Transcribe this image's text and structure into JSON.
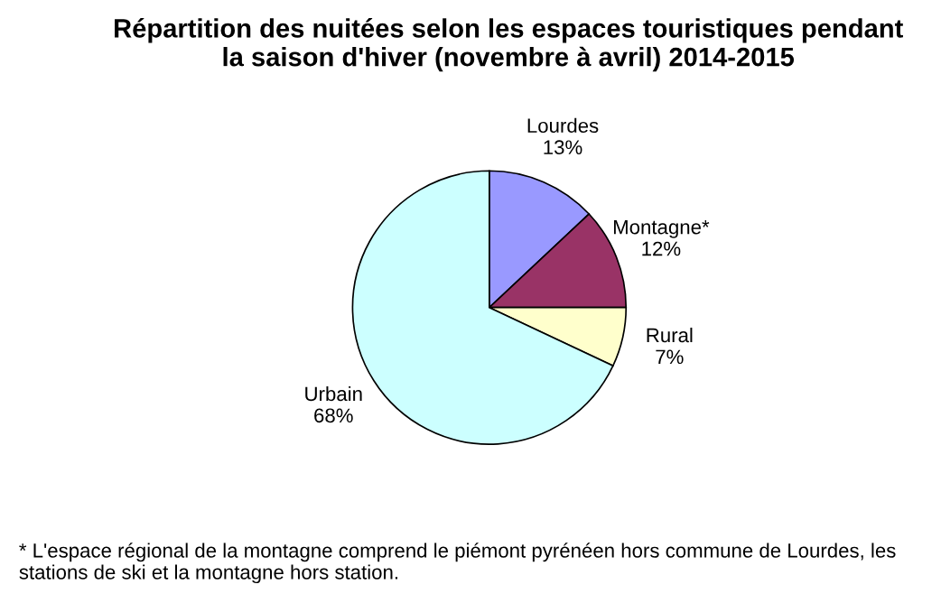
{
  "chart_data": {
    "type": "pie",
    "title": "Répartition des nuitées selon les espaces touristiques pendant\nla saison d'hiver (novembre à avril) 2014-2015",
    "categories": [
      "Lourdes",
      "Montagne*",
      "Rural",
      "Urbain"
    ],
    "values": [
      13,
      12,
      7,
      68
    ],
    "value_labels": [
      "13%",
      "12%",
      "7%",
      "68%"
    ],
    "colors": [
      "#9999ff",
      "#993366",
      "#ffffcc",
      "#ccffff"
    ],
    "annotations": [
      "* L'espace régional de la montagne comprend le piémont pyrénéen hors commune de Lourdes, les stations de ski et la montagne hors station."
    ]
  }
}
